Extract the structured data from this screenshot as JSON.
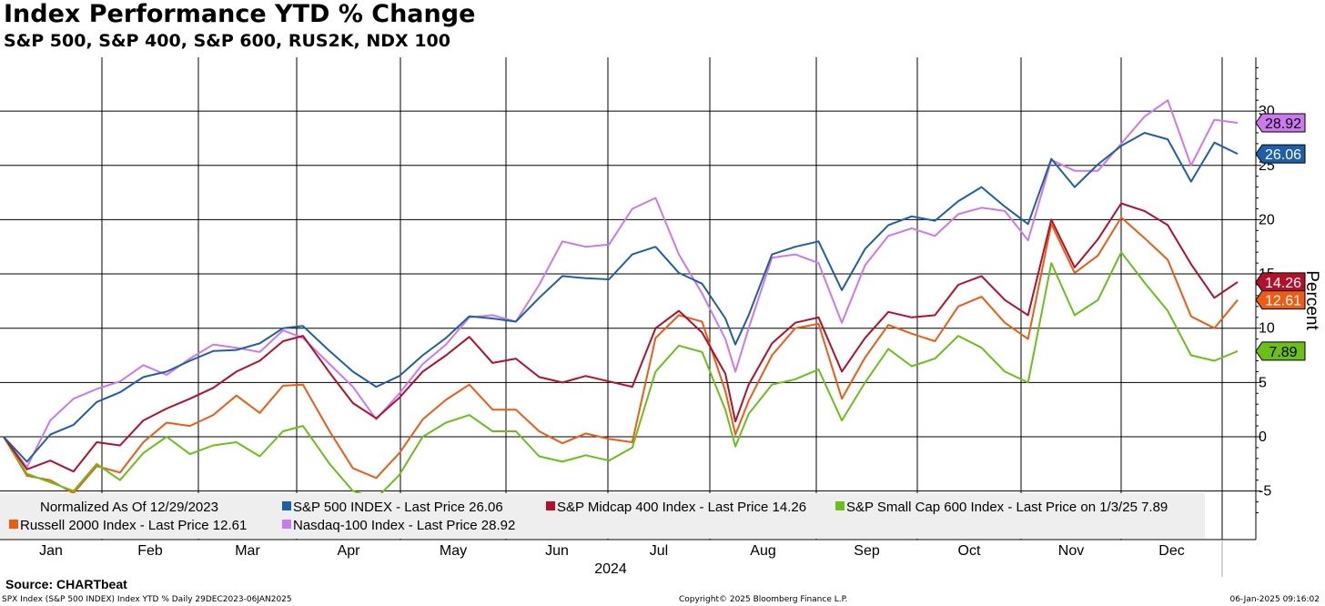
{
  "header": {
    "title": "Index Performance YTD % Change",
    "subtitle": "S&P 500, S&P 400, S&P 600, RUS2K, NDX 100"
  },
  "footer": {
    "source": "Source: CHARTbeat",
    "left": "SPX Index (S&P 500 INDEX) Index YTD %  Daily 29DEC2023-06JAN2025",
    "middle": "Copyright© 2025 Bloomberg Finance L.P.",
    "right": "06-Jan-2025 09:16:02"
  },
  "chart_data": {
    "type": "line",
    "ylabel": "Percent",
    "xlabel": "2024",
    "ylim": [
      -8,
      35
    ],
    "yticks": [
      -5,
      0,
      5,
      10,
      15,
      20,
      25,
      30
    ],
    "months": [
      "Jan",
      "Feb",
      "Mar",
      "Apr",
      "May",
      "Jun",
      "Jul",
      "Aug",
      "Sep",
      "Oct",
      "Nov",
      "Dec"
    ],
    "grid": true,
    "legend_placement": "bottom",
    "legend_note": "Normalized As Of 12/29/2023",
    "legend_text": [
      "S&P 500 INDEX - Last Price      26.06",
      "S&P Midcap 400 Index - Last Price 14.26",
      "S&P Small Cap 600 Index - Last Price on 1/3/25 7.89",
      "Russell 2000 Index - Last Price 12.61",
      "Nasdaq-100 Index - Last Price 28.92"
    ],
    "series": [
      {
        "name": "S&P 500 INDEX",
        "color": "#1f5fa8",
        "last_label": "26.06",
        "x": [
          "2023-12-29",
          "2024-01-05",
          "2024-01-12",
          "2024-01-19",
          "2024-01-26",
          "2024-02-02",
          "2024-02-09",
          "2024-02-16",
          "2024-02-23",
          "2024-03-01",
          "2024-03-08",
          "2024-03-15",
          "2024-03-22",
          "2024-03-28",
          "2024-04-05",
          "2024-04-12",
          "2024-04-19",
          "2024-04-26",
          "2024-05-03",
          "2024-05-10",
          "2024-05-17",
          "2024-05-24",
          "2024-05-31",
          "2024-06-07",
          "2024-06-14",
          "2024-06-21",
          "2024-06-28",
          "2024-07-05",
          "2024-07-12",
          "2024-07-19",
          "2024-07-26",
          "2024-08-02",
          "2024-08-05",
          "2024-08-09",
          "2024-08-16",
          "2024-08-23",
          "2024-08-30",
          "2024-09-06",
          "2024-09-13",
          "2024-09-20",
          "2024-09-27",
          "2024-10-04",
          "2024-10-11",
          "2024-10-18",
          "2024-10-25",
          "2024-11-01",
          "2024-11-08",
          "2024-11-15",
          "2024-11-22",
          "2024-11-29",
          "2024-12-06",
          "2024-12-13",
          "2024-12-20",
          "2024-12-27",
          "2025-01-03"
        ],
        "y": [
          0,
          -2.3,
          0.2,
          1.1,
          3.2,
          4.1,
          5.5,
          6.0,
          7.0,
          7.9,
          8.0,
          8.6,
          10.0,
          10.2,
          7.9,
          6.0,
          4.6,
          5.6,
          7.5,
          9.1,
          11.1,
          10.9,
          10.6,
          12.8,
          14.8,
          14.6,
          14.5,
          16.8,
          17.5,
          15.1,
          14.1,
          10.9,
          8.5,
          11.2,
          16.8,
          17.5,
          18.0,
          13.5,
          17.3,
          19.5,
          20.3,
          19.9,
          21.7,
          23.0,
          21.2,
          19.6,
          25.6,
          23.0,
          25.1,
          26.8,
          28.0,
          27.4,
          23.5,
          27.1,
          26.06
        ]
      },
      {
        "name": "S&P Midcap 400 Index",
        "color": "#b3102a",
        "last_label": "14.26",
        "x": [
          "2023-12-29",
          "2024-01-05",
          "2024-01-12",
          "2024-01-19",
          "2024-01-26",
          "2024-02-02",
          "2024-02-09",
          "2024-02-16",
          "2024-02-23",
          "2024-03-01",
          "2024-03-08",
          "2024-03-15",
          "2024-03-22",
          "2024-03-28",
          "2024-04-05",
          "2024-04-12",
          "2024-04-19",
          "2024-04-26",
          "2024-05-03",
          "2024-05-10",
          "2024-05-17",
          "2024-05-24",
          "2024-05-31",
          "2024-06-07",
          "2024-06-14",
          "2024-06-21",
          "2024-06-28",
          "2024-07-05",
          "2024-07-12",
          "2024-07-19",
          "2024-07-26",
          "2024-08-02",
          "2024-08-05",
          "2024-08-09",
          "2024-08-16",
          "2024-08-23",
          "2024-08-30",
          "2024-09-06",
          "2024-09-13",
          "2024-09-20",
          "2024-09-27",
          "2024-10-04",
          "2024-10-11",
          "2024-10-18",
          "2024-10-25",
          "2024-11-01",
          "2024-11-08",
          "2024-11-15",
          "2024-11-22",
          "2024-11-29",
          "2024-12-06",
          "2024-12-13",
          "2024-12-20",
          "2024-12-27",
          "2025-01-03"
        ],
        "y": [
          0,
          -3.0,
          -2.2,
          -3.2,
          -0.5,
          -0.8,
          1.5,
          2.6,
          3.5,
          4.5,
          6.0,
          7.0,
          8.8,
          9.3,
          5.9,
          3.1,
          1.7,
          3.6,
          6.0,
          7.5,
          9.2,
          6.8,
          7.2,
          5.5,
          5.0,
          5.6,
          5.1,
          4.6,
          10.0,
          11.6,
          9.6,
          5.8,
          1.4,
          4.8,
          8.6,
          10.5,
          11.0,
          6.0,
          9.1,
          11.5,
          11.0,
          11.2,
          14.0,
          14.8,
          12.6,
          11.2,
          20.0,
          15.6,
          18.2,
          21.5,
          20.8,
          19.5,
          15.9,
          12.8,
          14.26
        ]
      },
      {
        "name": "S&P Small Cap 600 Index",
        "color": "#6cbf1b",
        "last_label": "7.89",
        "x": [
          "2023-12-29",
          "2024-01-05",
          "2024-01-12",
          "2024-01-19",
          "2024-01-26",
          "2024-02-02",
          "2024-02-09",
          "2024-02-16",
          "2024-02-23",
          "2024-03-01",
          "2024-03-08",
          "2024-03-15",
          "2024-03-22",
          "2024-03-28",
          "2024-04-05",
          "2024-04-12",
          "2024-04-19",
          "2024-04-26",
          "2024-05-03",
          "2024-05-10",
          "2024-05-17",
          "2024-05-24",
          "2024-05-31",
          "2024-06-07",
          "2024-06-14",
          "2024-06-21",
          "2024-06-28",
          "2024-07-05",
          "2024-07-12",
          "2024-07-19",
          "2024-07-26",
          "2024-08-02",
          "2024-08-05",
          "2024-08-09",
          "2024-08-16",
          "2024-08-23",
          "2024-08-30",
          "2024-09-06",
          "2024-09-13",
          "2024-09-20",
          "2024-09-27",
          "2024-10-04",
          "2024-10-11",
          "2024-10-18",
          "2024-10-25",
          "2024-11-01",
          "2024-11-08",
          "2024-11-15",
          "2024-11-22",
          "2024-11-29",
          "2024-12-06",
          "2024-12-13",
          "2024-12-20",
          "2024-12-27",
          "2025-01-03"
        ],
        "y": [
          0,
          -3.4,
          -4.2,
          -5.0,
          -2.5,
          -4.0,
          -1.5,
          0.0,
          -1.6,
          -0.8,
          -0.5,
          -1.8,
          0.5,
          1.0,
          -2.5,
          -5.0,
          -5.7,
          -3.5,
          0.0,
          1.3,
          2.0,
          0.5,
          0.5,
          -1.8,
          -2.3,
          -1.7,
          -2.2,
          -1.0,
          6.0,
          8.4,
          7.8,
          2.5,
          -0.9,
          2.1,
          4.8,
          5.3,
          6.2,
          1.5,
          5.0,
          8.1,
          6.5,
          7.2,
          9.3,
          8.2,
          6.0,
          5.0,
          16.0,
          11.2,
          12.6,
          17.0,
          14.2,
          11.6,
          7.5,
          7.0,
          7.89
        ]
      },
      {
        "name": "Russell 2000 Index",
        "color": "#ee5c14",
        "last_label": "12.61",
        "x": [
          "2023-12-29",
          "2024-01-05",
          "2024-01-12",
          "2024-01-19",
          "2024-01-26",
          "2024-02-02",
          "2024-02-09",
          "2024-02-16",
          "2024-02-23",
          "2024-03-01",
          "2024-03-08",
          "2024-03-15",
          "2024-03-22",
          "2024-03-28",
          "2024-04-05",
          "2024-04-12",
          "2024-04-19",
          "2024-04-26",
          "2024-05-03",
          "2024-05-10",
          "2024-05-17",
          "2024-05-24",
          "2024-05-31",
          "2024-06-07",
          "2024-06-14",
          "2024-06-21",
          "2024-06-28",
          "2024-07-05",
          "2024-07-12",
          "2024-07-19",
          "2024-07-26",
          "2024-08-02",
          "2024-08-05",
          "2024-08-09",
          "2024-08-16",
          "2024-08-23",
          "2024-08-30",
          "2024-09-06",
          "2024-09-13",
          "2024-09-20",
          "2024-09-27",
          "2024-10-04",
          "2024-10-11",
          "2024-10-18",
          "2024-10-25",
          "2024-11-01",
          "2024-11-08",
          "2024-11-15",
          "2024-11-22",
          "2024-11-29",
          "2024-12-06",
          "2024-12-13",
          "2024-12-20",
          "2024-12-27",
          "2025-01-03"
        ],
        "y": [
          0,
          -3.6,
          -4.0,
          -5.2,
          -2.7,
          -3.3,
          -0.5,
          1.3,
          1.0,
          2.0,
          3.8,
          2.2,
          4.7,
          4.8,
          0.5,
          -2.9,
          -3.8,
          -1.5,
          1.6,
          3.4,
          4.8,
          2.5,
          2.5,
          0.5,
          -0.6,
          0.3,
          -0.2,
          -0.5,
          9.1,
          11.2,
          10.6,
          4.2,
          0.2,
          3.3,
          7.5,
          10.0,
          10.4,
          3.5,
          7.3,
          10.3,
          9.5,
          8.8,
          12.0,
          12.9,
          10.5,
          9.0,
          19.6,
          15.1,
          16.7,
          20.2,
          18.3,
          16.3,
          11.1,
          10.0,
          12.61
        ]
      },
      {
        "name": "Nasdaq-100 Index",
        "color": "#cc79f0",
        "last_label": "28.92",
        "x": [
          "2023-12-29",
          "2024-01-05",
          "2024-01-12",
          "2024-01-19",
          "2024-01-26",
          "2024-02-02",
          "2024-02-09",
          "2024-02-16",
          "2024-02-23",
          "2024-03-01",
          "2024-03-08",
          "2024-03-15",
          "2024-03-22",
          "2024-03-28",
          "2024-04-05",
          "2024-04-12",
          "2024-04-19",
          "2024-04-26",
          "2024-05-03",
          "2024-05-10",
          "2024-05-17",
          "2024-05-24",
          "2024-05-31",
          "2024-06-07",
          "2024-06-14",
          "2024-06-21",
          "2024-06-28",
          "2024-07-05",
          "2024-07-12",
          "2024-07-19",
          "2024-07-26",
          "2024-08-02",
          "2024-08-05",
          "2024-08-09",
          "2024-08-16",
          "2024-08-23",
          "2024-08-30",
          "2024-09-06",
          "2024-09-13",
          "2024-09-20",
          "2024-09-27",
          "2024-10-04",
          "2024-10-11",
          "2024-10-18",
          "2024-10-25",
          "2024-11-01",
          "2024-11-08",
          "2024-11-15",
          "2024-11-22",
          "2024-11-29",
          "2024-12-06",
          "2024-12-13",
          "2024-12-20",
          "2024-12-27",
          "2025-01-03"
        ],
        "y": [
          0,
          -2.8,
          1.5,
          3.5,
          4.4,
          5.1,
          6.6,
          5.7,
          7.2,
          8.5,
          8.2,
          7.8,
          9.8,
          9.1,
          6.7,
          4.6,
          1.6,
          4.0,
          6.7,
          8.5,
          11.0,
          11.2,
          10.6,
          14.0,
          18.0,
          17.5,
          17.7,
          21.0,
          22.0,
          16.8,
          13.2,
          9.0,
          6.0,
          10.0,
          16.5,
          16.8,
          16.0,
          10.5,
          15.8,
          18.5,
          19.2,
          18.5,
          20.5,
          21.1,
          20.8,
          18.1,
          25.5,
          24.5,
          24.5,
          27.0,
          29.5,
          31.0,
          25.0,
          29.2,
          28.92
        ]
      }
    ]
  }
}
